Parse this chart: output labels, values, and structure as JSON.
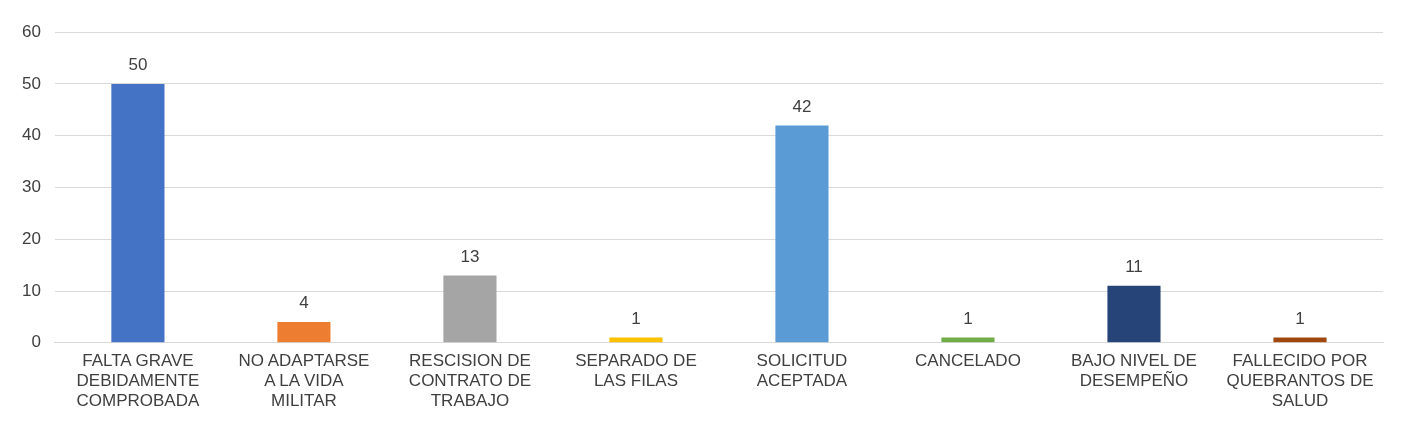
{
  "chart_data": {
    "type": "bar",
    "categories": [
      "FALTA GRAVE DEBIDAMENTE COMPROBADA",
      "NO ADAPTARSE A LA VIDA MILITAR",
      "RESCISION DE CONTRATO DE TRABAJO",
      "SEPARADO DE LAS FILAS",
      "SOLICITUD ACEPTADA",
      "CANCELADO",
      "BAJO NIVEL DE DESEMPEÑO",
      "FALLECIDO POR QUEBRANTOS DE SALUD"
    ],
    "values": [
      50,
      4,
      13,
      1,
      42,
      1,
      11,
      1
    ],
    "colors": [
      "#4472c4",
      "#ed7d31",
      "#a5a5a5",
      "#ffc000",
      "#5b9bd5",
      "#70ad47",
      "#264478",
      "#9e480e"
    ],
    "ylim": [
      0,
      60
    ],
    "yticks": [
      0,
      10,
      20,
      30,
      40,
      50,
      60
    ],
    "grid": "y",
    "legend": false,
    "data_labels": true
  }
}
